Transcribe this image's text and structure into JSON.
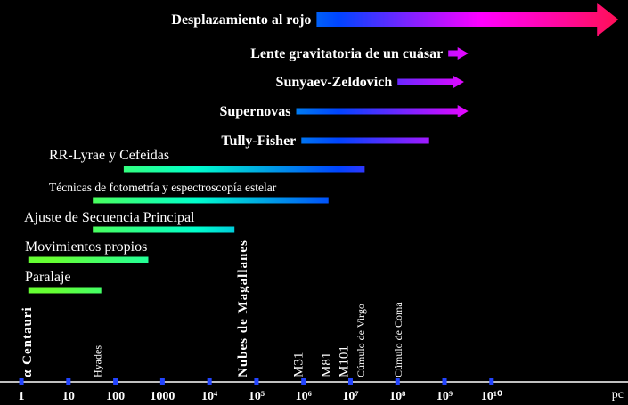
{
  "chart_data": {
    "type": "range",
    "log_x": true,
    "x_unit": "pc",
    "xlim": [
      0.35,
      8000000000000
    ],
    "xticks": [
      1,
      10,
      100,
      1000,
      {
        "value": 10000,
        "label": "10⁴"
      },
      {
        "value": 100000,
        "label": "10⁵"
      },
      {
        "value": 1000000,
        "label": "10⁶"
      },
      {
        "value": 10000000,
        "label": "10⁷"
      },
      {
        "value": 100000000,
        "label": "10⁸"
      },
      {
        "value": 1000000000,
        "label": "10⁹"
      },
      {
        "value": 10000000000,
        "label": "10¹⁰"
      }
    ],
    "colors": [
      "#66ff33",
      "#00ffcc",
      "#0044ff",
      "#ff00ff",
      "#ff1050"
    ],
    "tick_color": "#2244ff",
    "ranges": [
      {
        "name": "Desplazamiento al rojo",
        "start": 1900000,
        "end": 5000000000000,
        "arrow": true
      },
      {
        "name": "Lente gravitatoria de un cuásar",
        "start": 1200000000,
        "end": 3200000000,
        "arrow": true
      },
      {
        "name": "Sunyaev-Zeldovich",
        "start": 100000000,
        "end": 2600000000,
        "arrow": true
      },
      {
        "name": "Supernovas",
        "start": 700000,
        "end": 3200000000,
        "arrow": true
      },
      {
        "name": "Tully-Fisher",
        "start": 900000,
        "end": 470000000,
        "arrow": false
      },
      {
        "name": "RR-Lyrae y Cefeidas",
        "start": 150,
        "end": 20000000,
        "arrow": false
      },
      {
        "name": "Técnicas de fotometría y espectroscopía estelar",
        "start": 33,
        "end": 3400000,
        "arrow": false
      },
      {
        "name": "Ajuste de Secuencia Principal",
        "start": 33,
        "end": 34000,
        "arrow": false
      },
      {
        "name": "Movimientos propios",
        "start": 1.4,
        "end": 500,
        "arrow": false
      },
      {
        "name": "Paralaje",
        "start": 1.4,
        "end": 50,
        "arrow": false
      }
    ],
    "objects": [
      {
        "name": "α Centauri",
        "distance": 1.3
      },
      {
        "name": "Hyades",
        "distance": 40
      },
      {
        "name": "Nubes de Magallanes",
        "distance": 50000
      },
      {
        "name": "M31",
        "distance": 770000
      },
      {
        "name": "M81",
        "distance": 3000000
      },
      {
        "name": "M101",
        "distance": 7000000
      },
      {
        "name": "Cúmulo de Virgo",
        "distance": 16000000
      },
      {
        "name": "Cúmulo de Coma",
        "distance": 100000000
      }
    ]
  }
}
